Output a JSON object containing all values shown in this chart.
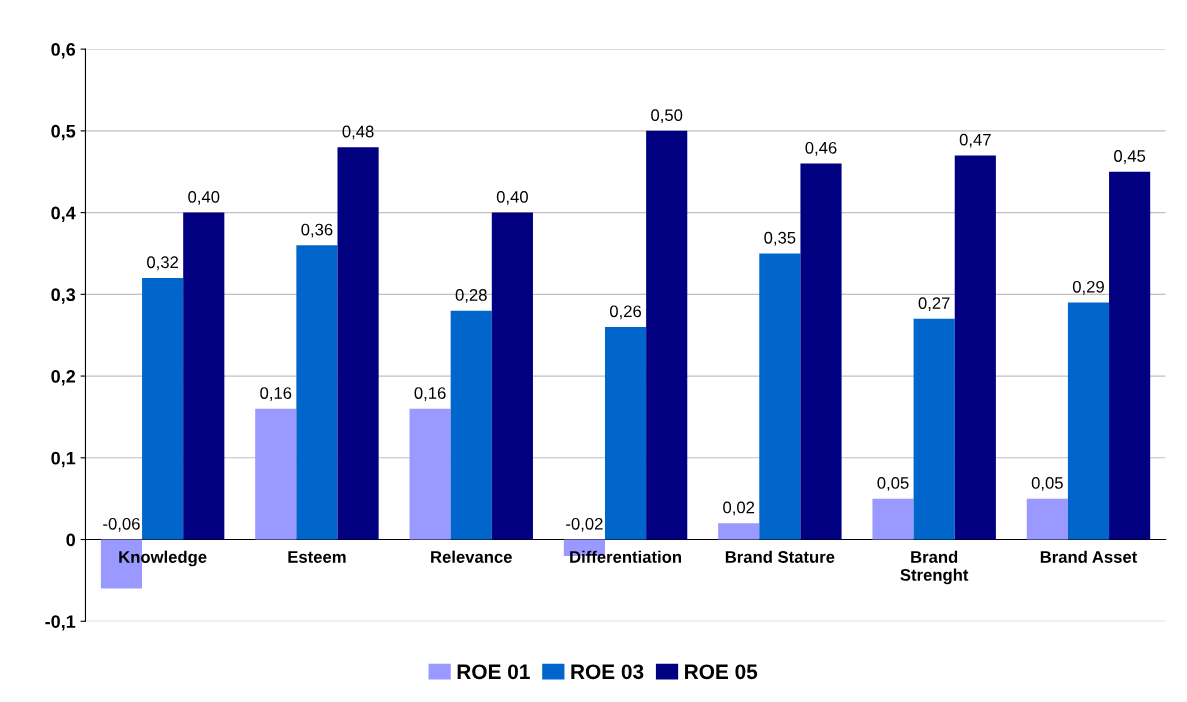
{
  "chart_data": {
    "type": "bar",
    "categories": [
      "Knowledge",
      "Esteem",
      "Relevance",
      "Differentiation",
      "Brand Stature",
      "Brand\nStrenght",
      "Brand Asset"
    ],
    "series": [
      {
        "name": "ROE 01",
        "color": "#9999ff",
        "values": [
          -0.06,
          0.16,
          0.16,
          -0.02,
          0.02,
          0.05,
          0.05
        ],
        "value_labels": [
          "-0,06",
          "0,16",
          "0,16",
          "-0,02",
          "0,02",
          "0,05",
          "0,05"
        ]
      },
      {
        "name": "ROE 03",
        "color": "#0066cc",
        "values": [
          0.32,
          0.36,
          0.28,
          0.26,
          0.35,
          0.27,
          0.29
        ],
        "value_labels": [
          "0,32",
          "0,36",
          "0,28",
          "0,26",
          "0,35",
          "0,27",
          "0,29"
        ]
      },
      {
        "name": "ROE 05",
        "color": "#000080",
        "values": [
          0.4,
          0.48,
          0.4,
          0.5,
          0.46,
          0.47,
          0.45
        ],
        "value_labels": [
          "0,40",
          "0,48",
          "0,40",
          "0,50",
          "0,46",
          "0,47",
          "0,45"
        ]
      }
    ],
    "ylim": [
      -0.1,
      0.6
    ],
    "yticks": [
      {
        "value": -0.1,
        "label": "-0,1"
      },
      {
        "value": 0,
        "label": "0"
      },
      {
        "value": 0.1,
        "label": "0,1"
      },
      {
        "value": 0.2,
        "label": "0,2"
      },
      {
        "value": 0.3,
        "label": "0,3"
      },
      {
        "value": 0.4,
        "label": "0,4"
      },
      {
        "value": 0.5,
        "label": "0,5"
      },
      {
        "value": 0.6,
        "label": "0,6"
      }
    ],
    "grid": "y",
    "legend": "bottom"
  }
}
